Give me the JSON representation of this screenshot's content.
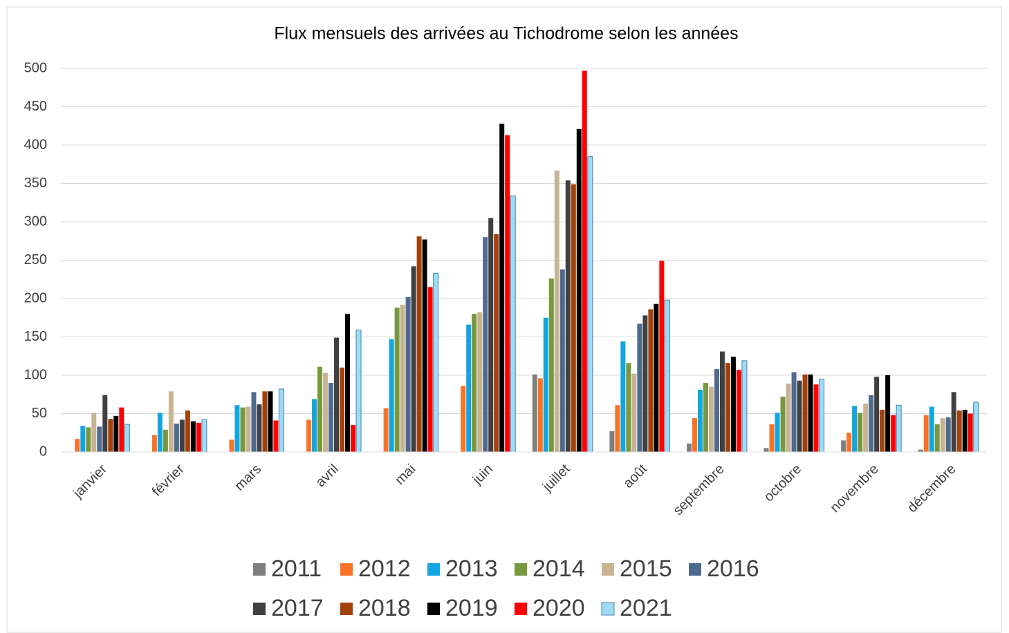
{
  "chart_data": {
    "type": "bar",
    "title": "Flux mensuels des arrivées au Tichodrome selon les années",
    "categories": [
      "janvier",
      "février",
      "mars",
      "avril",
      "mai",
      "juin",
      "juillet",
      "août",
      "septembre",
      "octobre",
      "novembre",
      "décembre"
    ],
    "series": [
      {
        "name": "2011",
        "color": "#7f7f7f",
        "values": [
          0,
          0,
          0,
          0,
          0,
          0,
          101,
          27,
          11,
          5,
          15,
          3
        ]
      },
      {
        "name": "2012",
        "color": "#f97326",
        "values": [
          17,
          22,
          16,
          42,
          57,
          86,
          96,
          61,
          44,
          36,
          25,
          48
        ]
      },
      {
        "name": "2013",
        "color": "#12a5e0",
        "values": [
          34,
          51,
          61,
          69,
          147,
          166,
          175,
          144,
          81,
          51,
          60,
          59
        ]
      },
      {
        "name": "2014",
        "color": "#77983f",
        "values": [
          32,
          29,
          58,
          111,
          188,
          180,
          226,
          116,
          90,
          72,
          51,
          36
        ]
      },
      {
        "name": "2015",
        "color": "#c7b493",
        "values": [
          51,
          79,
          59,
          103,
          192,
          182,
          367,
          102,
          85,
          89,
          63,
          44
        ]
      },
      {
        "name": "2016",
        "color": "#4f6a8f",
        "values": [
          33,
          37,
          78,
          90,
          202,
          280,
          238,
          167,
          108,
          104,
          74,
          45
        ]
      },
      {
        "name": "2017",
        "color": "#404040",
        "values": [
          74,
          42,
          62,
          149,
          242,
          305,
          354,
          178,
          131,
          93,
          98,
          78
        ]
      },
      {
        "name": "2018",
        "color": "#a3410d",
        "values": [
          43,
          54,
          79,
          110,
          281,
          284,
          349,
          186,
          116,
          101,
          55,
          54
        ]
      },
      {
        "name": "2019",
        "color": "#000000",
        "values": [
          47,
          40,
          79,
          180,
          277,
          428,
          421,
          193,
          124,
          101,
          100,
          55
        ]
      },
      {
        "name": "2020",
        "color": "#ff0000",
        "values": [
          58,
          38,
          41,
          35,
          215,
          413,
          497,
          249,
          107,
          88,
          48,
          50
        ]
      },
      {
        "name": "2021",
        "color": "#9ddcf6",
        "values": [
          36,
          42,
          82,
          159,
          233,
          334,
          385,
          198,
          119,
          95,
          61,
          65
        ]
      }
    ],
    "ylim": [
      0,
      500
    ],
    "yticks": [
      0,
      50,
      100,
      150,
      200,
      250,
      300,
      350,
      400,
      450,
      500
    ],
    "grid": true,
    "legend": "bottom"
  }
}
